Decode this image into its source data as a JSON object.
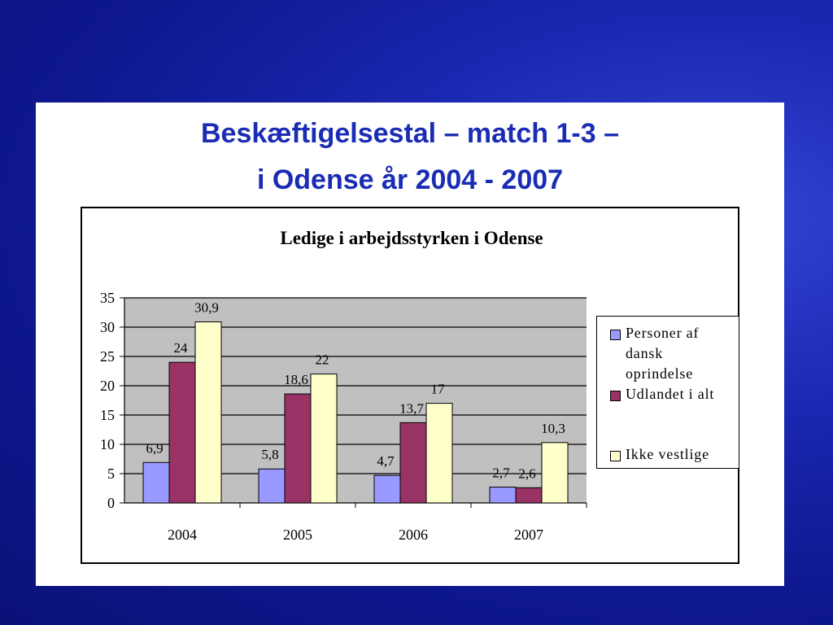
{
  "slide": {
    "title_line1": "Beskæftigelsestal – match 1-3 –",
    "title_line2": "i Odense år 2004 - 2007"
  },
  "chart_data": {
    "type": "bar",
    "title": "Ledige i arbejdsstyrken i Odense",
    "categories": [
      "2004",
      "2005",
      "2006",
      "2007"
    ],
    "series": [
      {
        "name": "Personer af dansk oprindelse",
        "values": [
          6.9,
          5.8,
          4.7,
          2.7
        ],
        "labels": [
          "6,9",
          "5,8",
          "4,7",
          "2,7"
        ],
        "color": "#9999ff"
      },
      {
        "name": "Udlandet i alt",
        "values": [
          24,
          18.6,
          13.7,
          2.6
        ],
        "labels": [
          "24",
          "18,6",
          "13,7",
          "2,6"
        ],
        "color": "#993366"
      },
      {
        "name": "Ikke vestlige",
        "values": [
          30.9,
          22,
          17,
          10.3
        ],
        "labels": [
          "30,9",
          "22",
          "17",
          "10,3"
        ],
        "color": "#ffffcc"
      }
    ],
    "ylim": [
      0,
      35
    ],
    "yticks": [
      "0",
      "5",
      "10",
      "15",
      "20",
      "25",
      "30",
      "35"
    ],
    "xlabel": "",
    "ylabel": "",
    "grid": true,
    "plot_background": "#c0c0c0",
    "legend_position": "right"
  }
}
